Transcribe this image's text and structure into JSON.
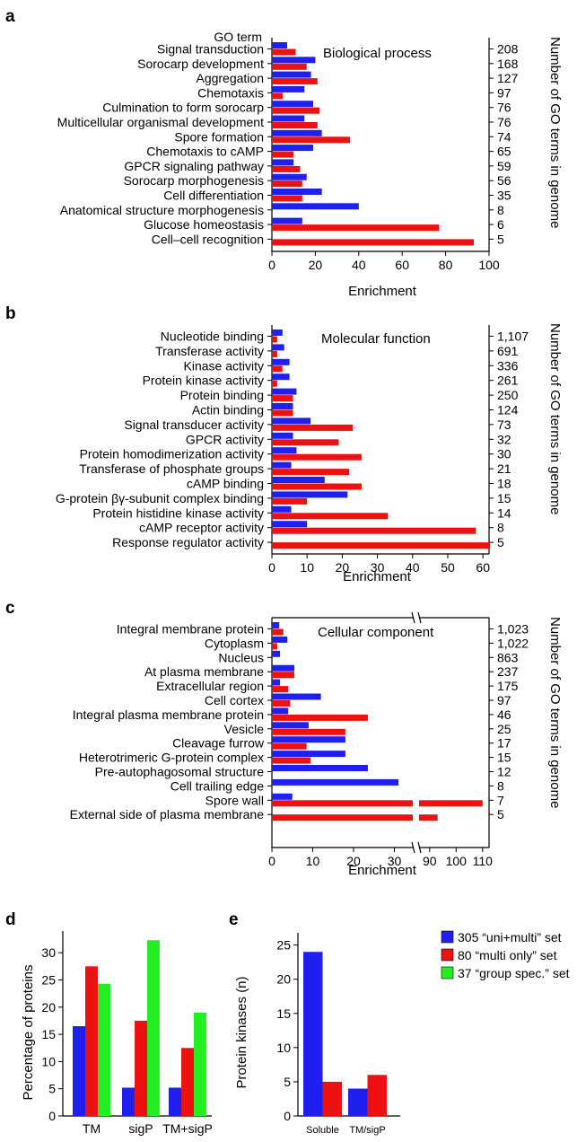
{
  "colors": {
    "blue": "#1f1ff0",
    "red": "#ee1111",
    "green": "#22ee22"
  },
  "right_axis_label": "Number of GO terms in genome",
  "panels": {
    "a": {
      "letter": "a",
      "header": "GO term",
      "section": "Biological process",
      "xlabel": "Enrichment"
    },
    "b": {
      "letter": "b",
      "section": "Molecular function",
      "xlabel": "Enrichment"
    },
    "c": {
      "letter": "c",
      "section": "Cellular component",
      "xlabel": "Enrichment"
    },
    "d": {
      "letter": "d",
      "ylabel": "Percentage of proteins"
    },
    "e": {
      "letter": "e",
      "ylabel": "Protein kinases (n)"
    }
  },
  "legend": [
    "305 “uni+multi” set",
    "80 “multi only” set",
    "37 “group spec.” set"
  ],
  "chart_data": [
    {
      "id": "a",
      "type": "bar",
      "orientation": "horizontal",
      "categories": [
        "Signal transduction",
        "Sorocarp development",
        "Aggregation",
        "Chemotaxis",
        "Culmination to form sorocarp",
        "Multicellular organismal development",
        "Spore formation",
        "Chemotaxis to cAMP",
        "GPCR signaling pathway",
        "Sorocarp morphogenesis",
        "Cell differentiation",
        "Anatomical structure morphogenesis",
        "Glucose homeostasis",
        "Cell–cell recognition"
      ],
      "go_counts": [
        "208",
        "168",
        "127",
        "97",
        "76",
        "76",
        "74",
        "65",
        "59",
        "56",
        "35",
        "8",
        "6",
        "5"
      ],
      "series": [
        {
          "values": [
            7,
            20,
            18,
            15,
            19,
            15,
            23,
            19,
            10,
            16,
            23,
            40,
            14,
            0
          ]
        },
        {
          "values": [
            11,
            16,
            21,
            5,
            22,
            21,
            36,
            10,
            13,
            14,
            14,
            0,
            77,
            93
          ]
        }
      ],
      "xlim": [
        0,
        100
      ],
      "xticks": [
        "0",
        "20",
        "40",
        "60",
        "80",
        "100"
      ]
    },
    {
      "id": "b",
      "type": "bar",
      "orientation": "horizontal",
      "categories": [
        "Nucleotide binding",
        "Transferase activity",
        "Kinase activity",
        "Protein kinase activity",
        "Protein binding",
        "Actin binding",
        "Signal transducer activity",
        "GPCR activity",
        "Protein homodimerization activity",
        "Transferase of phosphate groups",
        "cAMP binding",
        "G-protein βγ-subunit complex binding",
        "Protein histidine kinase activity",
        "cAMP receptor activity",
        "Response regulator activity"
      ],
      "go_counts": [
        "1,107",
        "691",
        "336",
        "261",
        "250",
        "124",
        "73",
        "32",
        "30",
        "21",
        "18",
        "15",
        "14",
        "8",
        "5"
      ],
      "series": [
        {
          "values": [
            3,
            3.5,
            5,
            5,
            7,
            6,
            11,
            6,
            7,
            5.5,
            15,
            21.5,
            5.5,
            10,
            0
          ]
        },
        {
          "values": [
            1.5,
            1.5,
            3,
            1.5,
            6,
            6,
            23,
            19,
            25.5,
            22,
            25.5,
            10,
            33,
            58,
            62
          ]
        }
      ],
      "xlim": [
        0,
        62
      ],
      "xticks": [
        "0",
        "10",
        "20",
        "30",
        "40",
        "50",
        "60"
      ]
    },
    {
      "id": "c",
      "type": "bar",
      "orientation": "horizontal",
      "broken_axis": true,
      "categories": [
        "Integral membrane protein",
        "Cytoplasm",
        "Nucleus",
        "At plasma membrane",
        "Extracellular region",
        "Cell cortex",
        "Integral plasma membrane protein",
        "Vesicle",
        "Cleavage furrow",
        "Heterotrimeric G-protein complex",
        "Pre-autophagosomal structure",
        "Cell trailing edge",
        "Spore wall",
        "External side of plasma membrane"
      ],
      "go_counts": [
        "1,023",
        "1,022",
        "863",
        "237",
        "175",
        "97",
        "46",
        "25",
        "17",
        "15",
        "12",
        "8",
        "7",
        "5"
      ],
      "series": [
        {
          "values": [
            1.8,
            3.8,
            2,
            5.5,
            2,
            12,
            4,
            9,
            18,
            18,
            23.5,
            31,
            5,
            0
          ]
        },
        {
          "values": [
            2.8,
            1.3,
            0,
            5.5,
            4,
            4.5,
            23.5,
            18,
            8.5,
            9.5,
            0,
            0,
            110,
            93
          ]
        }
      ],
      "xticks": [
        "0",
        "10",
        "20",
        "30",
        "90",
        "100",
        "110"
      ]
    },
    {
      "id": "d",
      "type": "bar",
      "categories": [
        "TM",
        "sigP",
        "TM+sigP"
      ],
      "series": [
        {
          "values": [
            16.5,
            5.2,
            5.2
          ]
        },
        {
          "values": [
            27.5,
            17.5,
            12.5
          ]
        },
        {
          "values": [
            24.3,
            32.3,
            19
          ]
        }
      ],
      "ylim": [
        0,
        33
      ],
      "yticks": [
        "0",
        "5",
        "10",
        "15",
        "20",
        "25",
        "30"
      ]
    },
    {
      "id": "e",
      "type": "bar",
      "categories": [
        "Soluble",
        "TM/sigP"
      ],
      "series": [
        {
          "values": [
            24,
            4
          ]
        },
        {
          "values": [
            5,
            6
          ]
        }
      ],
      "ylim": [
        0,
        26
      ],
      "yticks": [
        "0",
        "5",
        "10",
        "15",
        "20",
        "25"
      ]
    }
  ]
}
